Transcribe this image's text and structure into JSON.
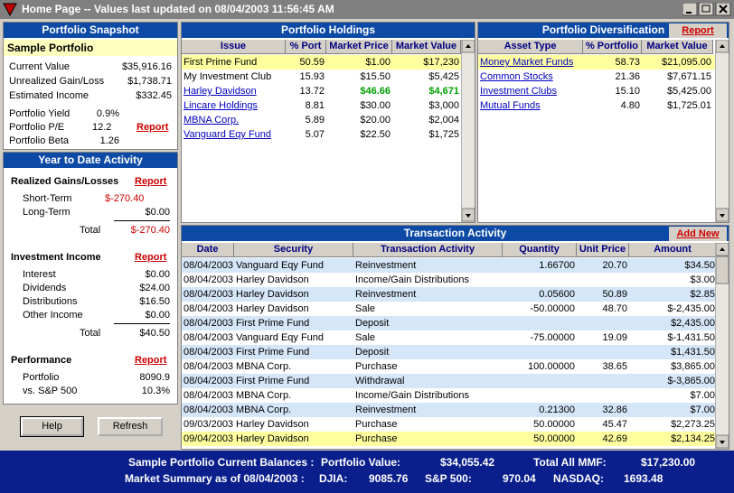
{
  "window": {
    "title": "Home Page -- Values last updated on 08/04/2003 11:56:45 AM"
  },
  "snapshot": {
    "header": "Portfolio Snapshot",
    "portfolio_name": "Sample Portfolio",
    "report": "Report",
    "rows": [
      [
        "Current Value",
        "$35,916.16"
      ],
      [
        "Unrealized Gain/Loss",
        "$1,738.71"
      ],
      [
        "Estimated Income",
        "$332.45"
      ],
      [
        "Portfolio Yield",
        "0.9%"
      ],
      [
        "Portfolio P/E",
        "12.2"
      ],
      [
        "Portfolio Beta",
        "1.26"
      ]
    ]
  },
  "ytd": {
    "header": "Year to Date Activity",
    "sections": [
      {
        "title": "Realized Gains/Losses",
        "report": "Report",
        "rows": [
          [
            "Short-Term",
            "$-270.40"
          ],
          [
            "Long-Term",
            "$0.00"
          ]
        ],
        "total": [
          "Total",
          "$-270.40"
        ]
      },
      {
        "title": "Investment Income",
        "report": "Report",
        "rows": [
          [
            "Interest",
            "$0.00"
          ],
          [
            "Dividends",
            "$24.00"
          ],
          [
            "Distributions",
            "$16.50"
          ],
          [
            "Other Income",
            "$0.00"
          ]
        ],
        "total": [
          "Total",
          "$40.50"
        ]
      },
      {
        "title": "Performance",
        "report": "Report",
        "rows": [
          [
            "Portfolio",
            "8090.9"
          ],
          [
            "vs. S&P 500",
            "10.3%"
          ]
        ]
      }
    ]
  },
  "buttons": [
    "Help",
    "Refresh"
  ],
  "holdings": {
    "header": "Portfolio Holdings",
    "columns": [
      "Issue",
      "% Port",
      "Market Price",
      "Market Value"
    ],
    "rows": [
      [
        "First Prime Fund",
        "50.59",
        "$1.00",
        "$17,230"
      ],
      [
        "My Investment Club",
        "15.93",
        "$15.50",
        "$5,425"
      ],
      [
        "Harley Davidson",
        "13.72",
        "$46.66",
        "$4,671"
      ],
      [
        "Lincare Holdings",
        "8.81",
        "$30.00",
        "$3,000"
      ],
      [
        "MBNA Corp.",
        "5.89",
        "$20.00",
        "$2,004"
      ],
      [
        "Vanguard Eqy Fund",
        "5.07",
        "$22.50",
        "$1,725"
      ]
    ]
  },
  "diversification": {
    "header": "Portfolio Diversification",
    "report": "Report",
    "columns": [
      "Asset Type",
      "% Portfolio",
      "Market Value"
    ],
    "rows": [
      [
        "Money Market Funds",
        "58.73",
        "$21,095.00"
      ],
      [
        "Common Stocks",
        "21.36",
        "$7,671.15"
      ],
      [
        "Investment Clubs",
        "15.10",
        "$5,425.00"
      ],
      [
        "Mutual Funds",
        "4.80",
        "$1,725.01"
      ]
    ]
  },
  "transactions": {
    "header": "Transaction Activity",
    "add_new": "Add New",
    "columns": [
      "Date",
      "Security",
      "Transaction Activity",
      "Quantity",
      "Unit Price",
      "Amount"
    ],
    "rows": [
      [
        "08/04/2003",
        "Vanguard Eqy Fund",
        "Reinvestment",
        "1.66700",
        "20.70",
        "$34.50"
      ],
      [
        "08/04/2003",
        "Harley Davidson",
        "Income/Gain Distributions",
        "",
        "",
        "$3.00"
      ],
      [
        "08/04/2003",
        "Harley Davidson",
        "Reinvestment",
        "0.05600",
        "50.89",
        "$2.85"
      ],
      [
        "08/04/2003",
        "Harley Davidson",
        "Sale",
        "-50.00000",
        "48.70",
        "$-2,435.00"
      ],
      [
        "08/04/2003",
        "First Prime Fund",
        "Deposit",
        "",
        "",
        "$2,435.00"
      ],
      [
        "08/04/2003",
        "Vanguard Eqy Fund",
        "Sale",
        "-75.00000",
        "19.09",
        "$-1,431.50"
      ],
      [
        "08/04/2003",
        "First Prime Fund",
        "Deposit",
        "",
        "",
        "$1,431.50"
      ],
      [
        "08/04/2003",
        "MBNA Corp.",
        "Purchase",
        "100.00000",
        "38.65",
        "$3,865.00"
      ],
      [
        "08/04/2003",
        "First Prime Fund",
        "Withdrawal",
        "",
        "",
        "$-3,865.00"
      ],
      [
        "08/04/2003",
        "MBNA Corp.",
        "Income/Gain Distributions",
        "",
        "",
        "$7.00"
      ],
      [
        "08/04/2003",
        "MBNA Corp.",
        "Reinvestment",
        "0.21300",
        "32.86",
        "$7.00"
      ],
      [
        "09/03/2003",
        "Harley Davidson",
        "Purchase",
        "50.00000",
        "45.47",
        "$2,273.25"
      ],
      [
        "09/04/2003",
        "Harley Davidson",
        "Purchase",
        "50.00000",
        "42.69",
        "$2,134.25"
      ]
    ]
  },
  "summary": {
    "balances_label": "Sample Portfolio Current Balances :",
    "portfolio_value_label": "Portfolio Value:",
    "portfolio_value": "$34,055.42",
    "mmf_label": "Total All MMF:",
    "mmf_value": "$17,230.00",
    "market_label": "Market Summary as of  08/04/2003 :",
    "djia_label": "DJIA:",
    "djia": "9085.76",
    "sp_label": "S&P 500:",
    "sp": "970.04",
    "nasdaq_label": "NASDAQ:",
    "nasdaq": "1693.48"
  }
}
